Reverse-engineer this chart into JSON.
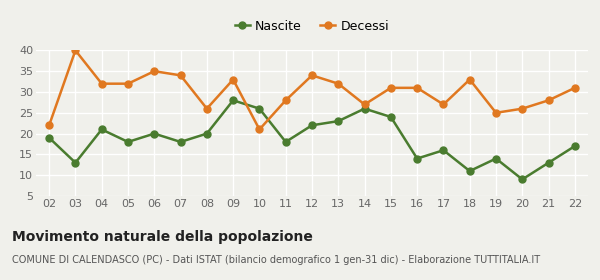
{
  "years": [
    2,
    3,
    4,
    5,
    6,
    7,
    8,
    9,
    10,
    11,
    12,
    13,
    14,
    15,
    16,
    17,
    18,
    19,
    20,
    21,
    22
  ],
  "nascite": [
    19,
    13,
    21,
    18,
    20,
    18,
    20,
    28,
    26,
    18,
    22,
    23,
    26,
    24,
    14,
    16,
    11,
    14,
    9,
    13,
    17
  ],
  "decessi": [
    22,
    40,
    32,
    32,
    35,
    34,
    26,
    33,
    21,
    28,
    34,
    32,
    27,
    31,
    31,
    27,
    33,
    25,
    26,
    28,
    31
  ],
  "nascite_color": "#4a7c2f",
  "decessi_color": "#e07820",
  "background_color": "#f0f0eb",
  "grid_color": "#ffffff",
  "title": "Movimento naturale della popolazione",
  "subtitle": "COMUNE DI CALENDASCO (PC) - Dati ISTAT (bilancio demografico 1 gen-31 dic) - Elaborazione TUTTITALIA.IT",
  "ylim": [
    5,
    40
  ],
  "yticks": [
    5,
    10,
    15,
    20,
    25,
    30,
    35,
    40
  ],
  "legend_nascite": "Nascite",
  "legend_decessi": "Decessi",
  "marker_size": 5,
  "line_width": 1.8,
  "tick_fontsize": 8,
  "title_fontsize": 10,
  "subtitle_fontsize": 7
}
